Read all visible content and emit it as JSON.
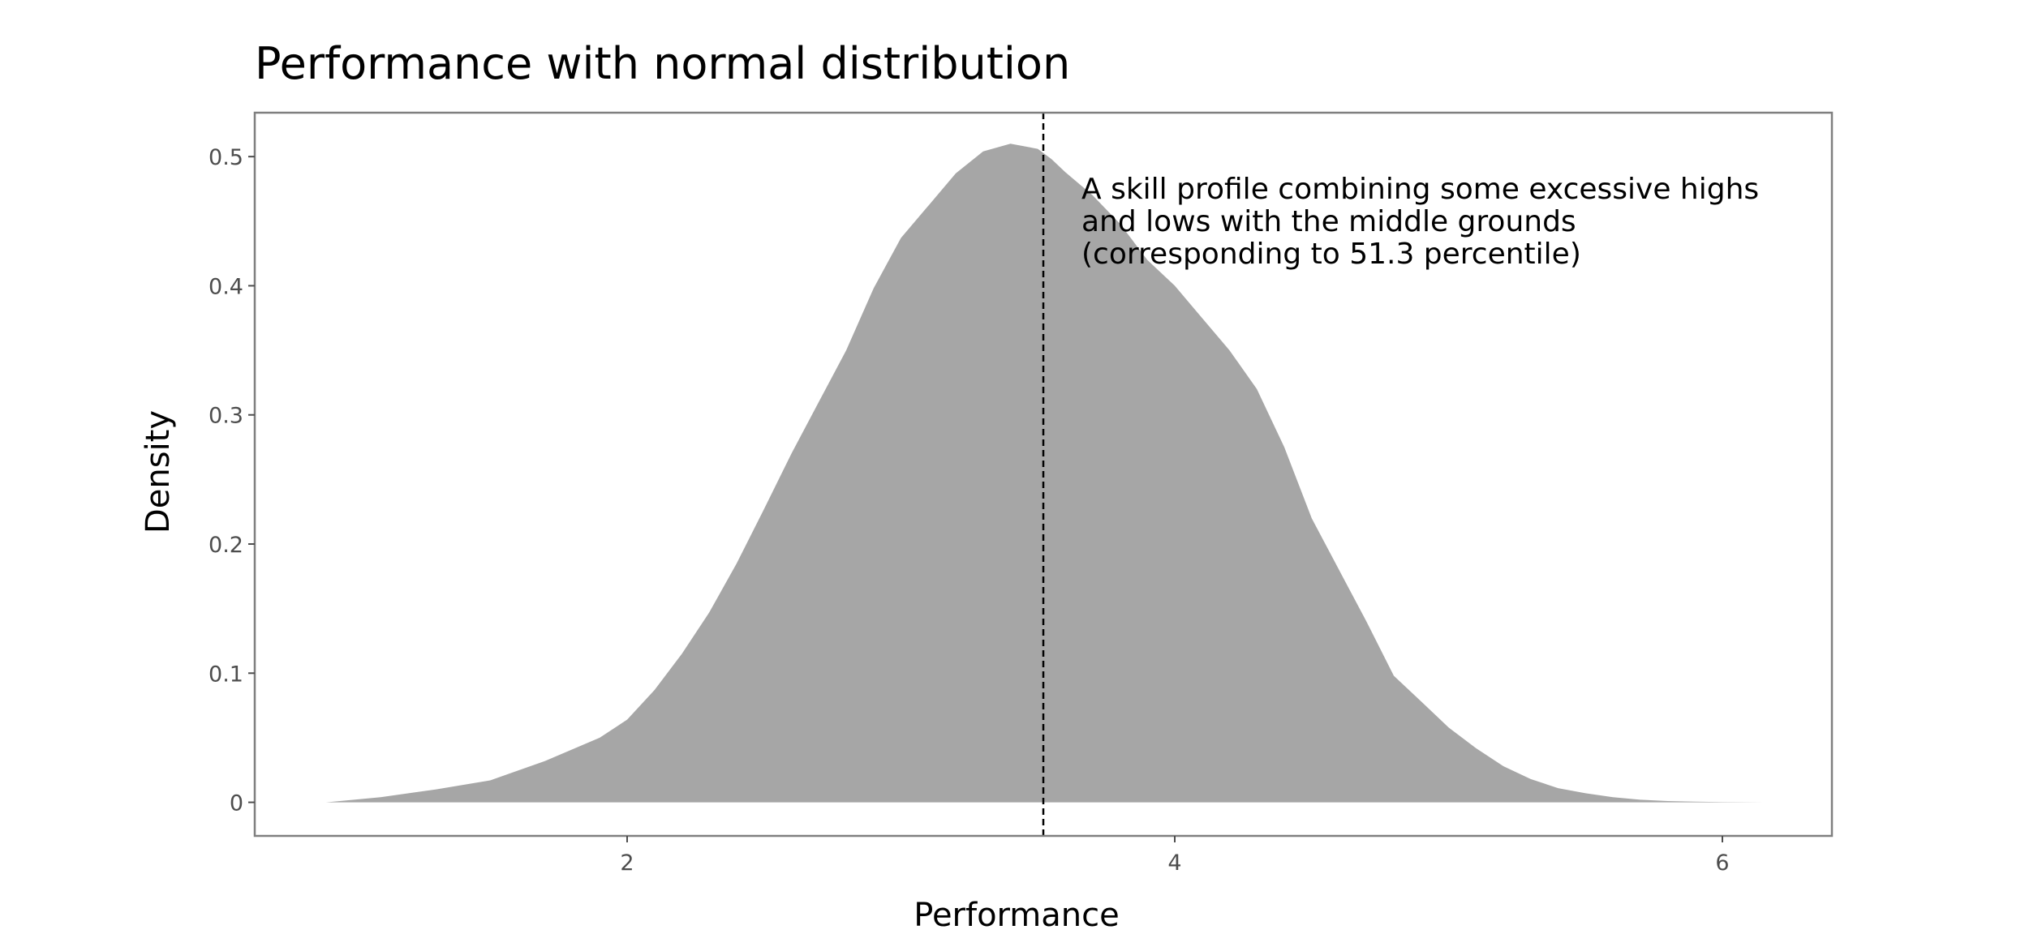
{
  "chart_data": {
    "type": "area",
    "title": "Performance with normal distribution",
    "xlabel": "Performance",
    "ylabel": "Density",
    "xlim": [
      0.64,
      6.4
    ],
    "ylim": [
      -0.026,
      0.534
    ],
    "x_ticks": [
      2,
      4,
      6
    ],
    "y_ticks": [
      0,
      0.1,
      0.2,
      0.3,
      0.4,
      0.5
    ],
    "y_tick_labels": [
      "0",
      "0.1",
      "0.2",
      "0.3",
      "0.4",
      "0.5"
    ],
    "x_tick_labels": [
      "2",
      "4",
      "6"
    ],
    "grid": false,
    "fill_color": "#a6a6a6",
    "series": [
      {
        "x": [
          0.9,
          1.1,
          1.3,
          1.5,
          1.7,
          1.9,
          2.0,
          2.1,
          2.2,
          2.3,
          2.4,
          2.5,
          2.6,
          2.7,
          2.8,
          2.9,
          3.0,
          3.1,
          3.2,
          3.3,
          3.4,
          3.5,
          3.55,
          3.6,
          3.7,
          3.8,
          3.9,
          4.0,
          4.1,
          4.2,
          4.3,
          4.4,
          4.5,
          4.6,
          4.7,
          4.8,
          4.9,
          5.0,
          5.1,
          5.2,
          5.3,
          5.4,
          5.5,
          5.6,
          5.7,
          5.8,
          5.9,
          6.0,
          6.15
        ],
        "values": [
          0.0,
          0.004,
          0.01,
          0.017,
          0.032,
          0.05,
          0.064,
          0.087,
          0.115,
          0.147,
          0.185,
          0.227,
          0.27,
          0.31,
          0.35,
          0.398,
          0.437,
          0.462,
          0.487,
          0.504,
          0.51,
          0.506,
          0.498,
          0.488,
          0.47,
          0.448,
          0.42,
          0.4,
          0.375,
          0.35,
          0.32,
          0.275,
          0.22,
          0.18,
          0.14,
          0.098,
          0.078,
          0.058,
          0.042,
          0.028,
          0.018,
          0.011,
          0.007,
          0.004,
          0.002,
          0.001,
          0.0005,
          0.0002,
          0.0
        ]
      }
    ],
    "vline": {
      "x": 3.52,
      "style": "dashed",
      "color": "#000000"
    },
    "annotation": {
      "lines": [
        "A skill profile combining some excessive highs",
        "and lows with the middle grounds",
        "(corresponding to 51.3 percentile)"
      ]
    }
  }
}
